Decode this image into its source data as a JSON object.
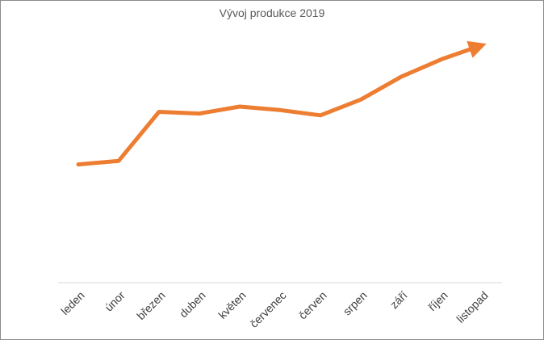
{
  "chart_data": {
    "type": "line",
    "title": "Vývoj produkce 2019",
    "xlabel": "",
    "ylabel": "",
    "categories": [
      "leden",
      "únor",
      "březen",
      "duben",
      "květen",
      "červenec",
      "červen",
      "srpen",
      "září",
      "říjen",
      "listopad"
    ],
    "series": [
      {
        "values": [
          40,
          44,
          100,
          98,
          106,
          102,
          96,
          114,
          140,
          160,
          176
        ]
      }
    ],
    "ylim": [
      -95,
      200
    ],
    "grid": false,
    "legend": "none",
    "y_axis_visible": false,
    "end_marker": "arrow",
    "colors": {
      "line": "#ED7D31",
      "axis": "#D9D9D9",
      "text": "#404040",
      "title": "#595959"
    }
  }
}
